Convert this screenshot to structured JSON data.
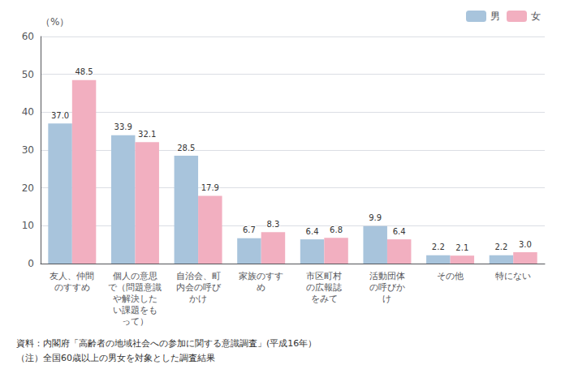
{
  "chart_data": {
    "type": "bar",
    "categories": [
      "友人、仲間\nのすすめ",
      "個人の意思\nで（問題意識\nや解決した\nい課題をも\nって）",
      "自治会、町\n内会の呼び\nかけ",
      "家族のすす\nめ",
      "市区町村\nの広報誌\nをみて",
      "活動団体\nの呼びか\nけ",
      "その他",
      "特にない"
    ],
    "series": [
      {
        "name": "男",
        "color": "#a8c4dc",
        "values": [
          37.0,
          33.9,
          28.5,
          6.7,
          6.4,
          9.9,
          2.2,
          2.2
        ],
        "value_labels": [
          "37.0",
          "33.9",
          "28.5",
          "6.7",
          "6.4",
          "9.9",
          "2.2",
          "2.2"
        ]
      },
      {
        "name": "女",
        "color": "#f2afc0",
        "values": [
          48.5,
          32.1,
          17.9,
          8.3,
          6.8,
          6.4,
          2.1,
          3.0
        ],
        "value_labels": [
          "48.5",
          "32.1",
          "17.9",
          "8.3",
          "6.8",
          "6.4",
          "2.1",
          "3.0"
        ]
      }
    ],
    "ylabel": "（%）",
    "ylim": [
      0,
      60
    ],
    "yticks": [
      0,
      10,
      20,
      30,
      40,
      50,
      60
    ],
    "grid": true,
    "legend": "upper right",
    "data_labels": true,
    "annotations": [
      "資料：内閣府「高齢者の地域社会への参加に関する意識調査」(平成16年）",
      "（注）全国60歳以上の男女を対象とした調査結果"
    ]
  }
}
